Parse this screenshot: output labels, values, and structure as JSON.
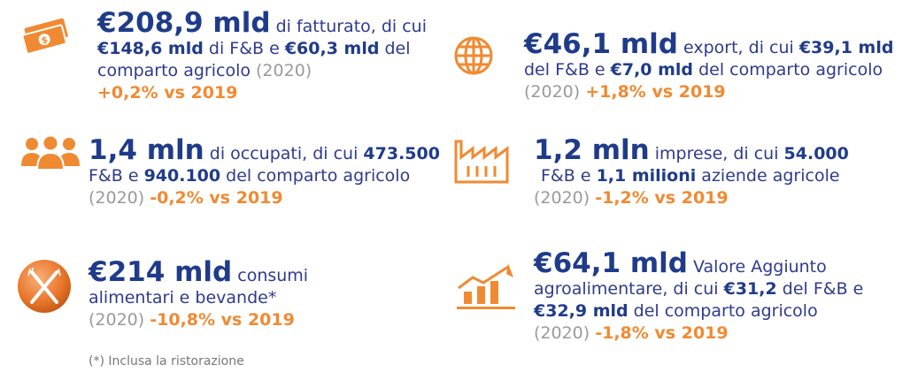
{
  "colors": {
    "navy": "#1f3b8a",
    "orange": "#f08a32",
    "grey": "#9a9a9a"
  },
  "stats": [
    {
      "icon": "money-icon",
      "big": "€208,9 mld",
      "l1_text": " di fatturato, di cui",
      "l2_a": "€148,6 mld",
      "l2_b": " di F&B e ",
      "l2_c": "€60,3 mld",
      "l2_d": " del",
      "l3_text": "comparto agricolo ",
      "l3_year": "(2020)",
      "delta": "+0,2% vs 2019"
    },
    {
      "icon": "globe-icon",
      "big": "€46,1 mld",
      "l1_text": " export, di cui ",
      "l1_bold": "€39,1 mld",
      "l2_a": "del F&B e ",
      "l2_b": "€7,0 mld",
      "l2_c": " del comparto agricolo",
      "year": "(2020) ",
      "delta": "+1,8% vs 2019"
    },
    {
      "icon": "people-icon",
      "big": "1,4 mln",
      "l1_text": " di occupati, di cui ",
      "l1_bold": "473.500",
      "l2_a": "F&B e ",
      "l2_b": "940.100",
      "l2_c": " del comparto agricolo",
      "year": "(2020) ",
      "delta": "-0,2% vs 2019"
    },
    {
      "icon": "factory-icon",
      "big": "1,2 mln",
      "l1_text": " imprese, di cui ",
      "l1_bold": "54.000",
      "l2_a": "F&B e ",
      "l2_b": "1,1 milioni",
      "l2_c": " aziende agricole",
      "year": "(2020) ",
      "delta": "-1,2% vs 2019"
    },
    {
      "icon": "fork-knife-icon",
      "big": "€214 mld",
      "l1_text": " consumi",
      "l2_a": "alimentari e bevande*",
      "year": "(2020) ",
      "delta": "-10,8% vs 2019"
    },
    {
      "icon": "growth-chart-icon",
      "big": "€64,1 mld",
      "l1_text": " Valore Aggiunto",
      "l2_a": "agroalimentare, di cui ",
      "l2_b": "€31,2",
      "l2_c": " del F&B e",
      "l3_a": "€32,9 mld",
      "l3_b": " del comparto agricolo",
      "year": "(2020) ",
      "delta": "-1,8% vs 2019"
    }
  ],
  "footnote": "(*) Inclusa la ristorazione"
}
